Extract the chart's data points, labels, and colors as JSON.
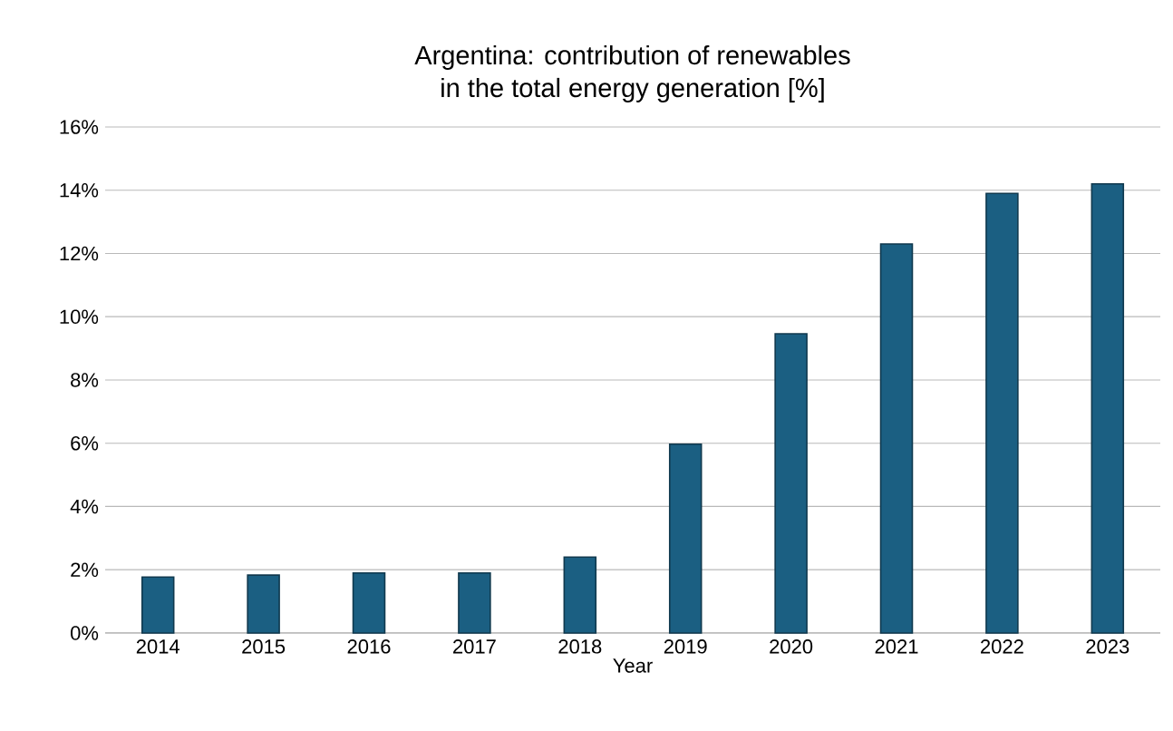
{
  "chart_data": {
    "type": "bar",
    "title": "Argentina: contribution of renewables\nin the total energy generation [%]",
    "xlabel": "Year",
    "categories": [
      "2014",
      "2015",
      "2016",
      "2017",
      "2018",
      "2019",
      "2020",
      "2021",
      "2022",
      "2023"
    ],
    "values": [
      1.77,
      1.83,
      1.9,
      1.9,
      2.4,
      5.97,
      9.46,
      12.3,
      13.9,
      14.2
    ],
    "color": "#1b5f82",
    "ylim": [
      0,
      16
    ],
    "yticks": [
      {
        "value": 0,
        "label": "0%"
      },
      {
        "value": 2,
        "label": "2%"
      },
      {
        "value": 4,
        "label": "4%"
      },
      {
        "value": 6,
        "label": "6%"
      },
      {
        "value": 8,
        "label": "8%"
      },
      {
        "value": 10,
        "label": "10%"
      },
      {
        "value": 12,
        "label": "12%"
      },
      {
        "value": 14,
        "label": "14%"
      },
      {
        "value": 16,
        "label": "16%"
      }
    ],
    "grid": "y"
  }
}
